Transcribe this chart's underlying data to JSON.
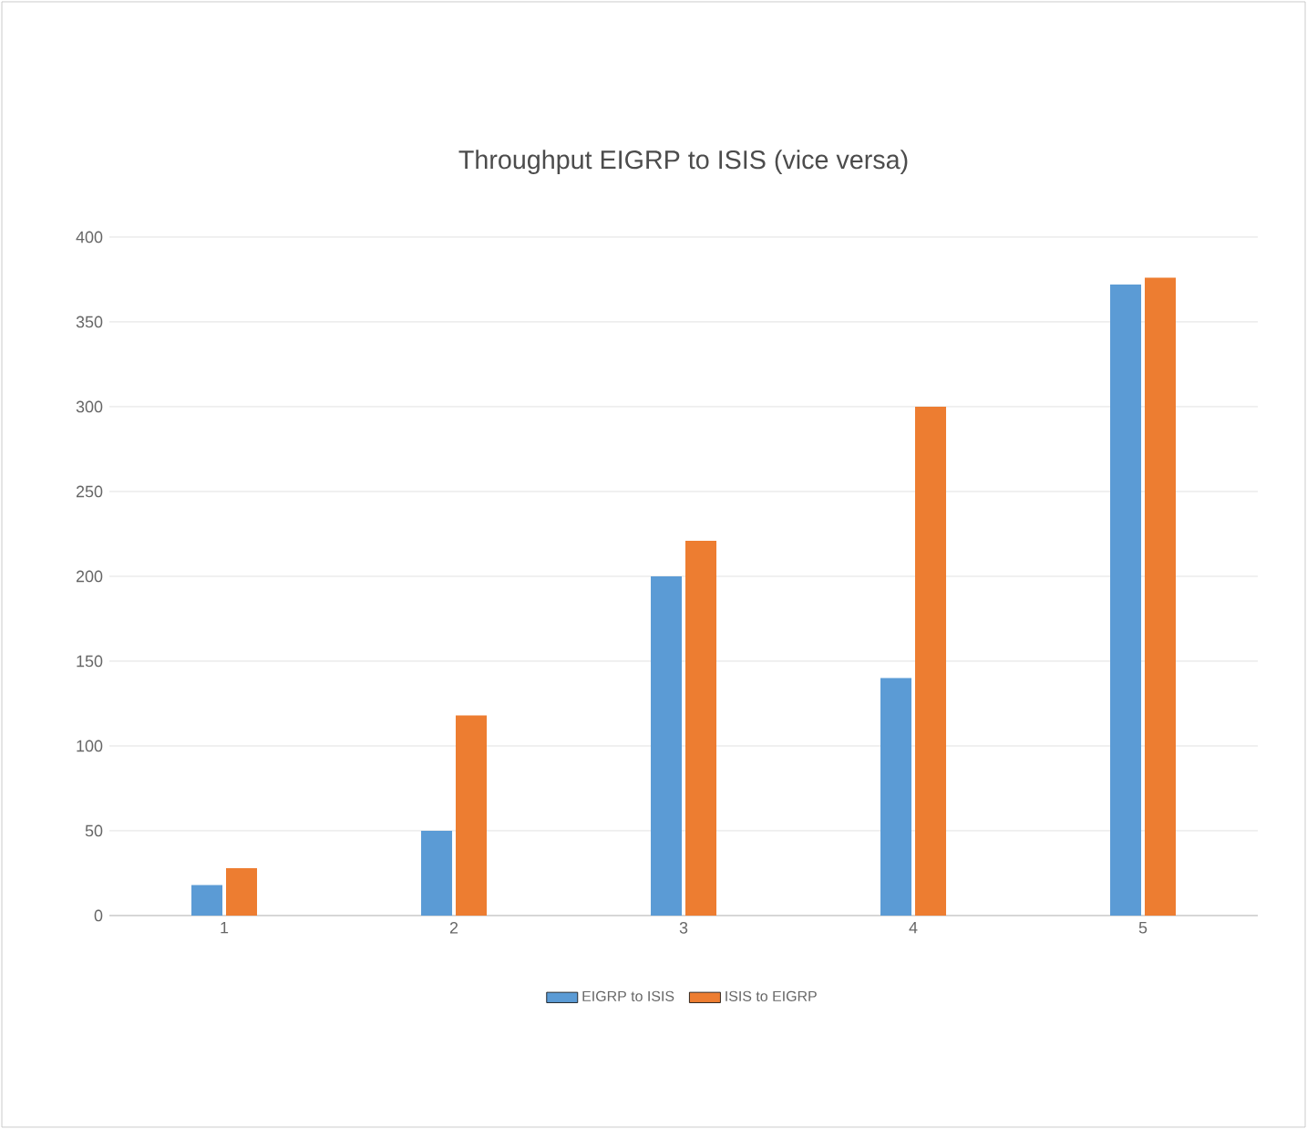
{
  "chart_data": {
    "type": "bar",
    "title": "Throughput EIGRP to ISIS (vice versa)",
    "categories": [
      "1",
      "2",
      "3",
      "4",
      "5"
    ],
    "series": [
      {
        "name": "EIGRP to ISIS",
        "color": "#5b9bd5",
        "values": [
          18,
          50,
          200,
          140,
          372
        ]
      },
      {
        "name": "ISIS to EIGRP",
        "color": "#ed7d31",
        "values": [
          28,
          118,
          221,
          300,
          376
        ]
      }
    ],
    "ylim": [
      0,
      400
    ],
    "yticks": [
      0,
      50,
      100,
      150,
      200,
      250,
      300,
      350,
      400
    ],
    "grid": "y",
    "legend": "bottom"
  }
}
